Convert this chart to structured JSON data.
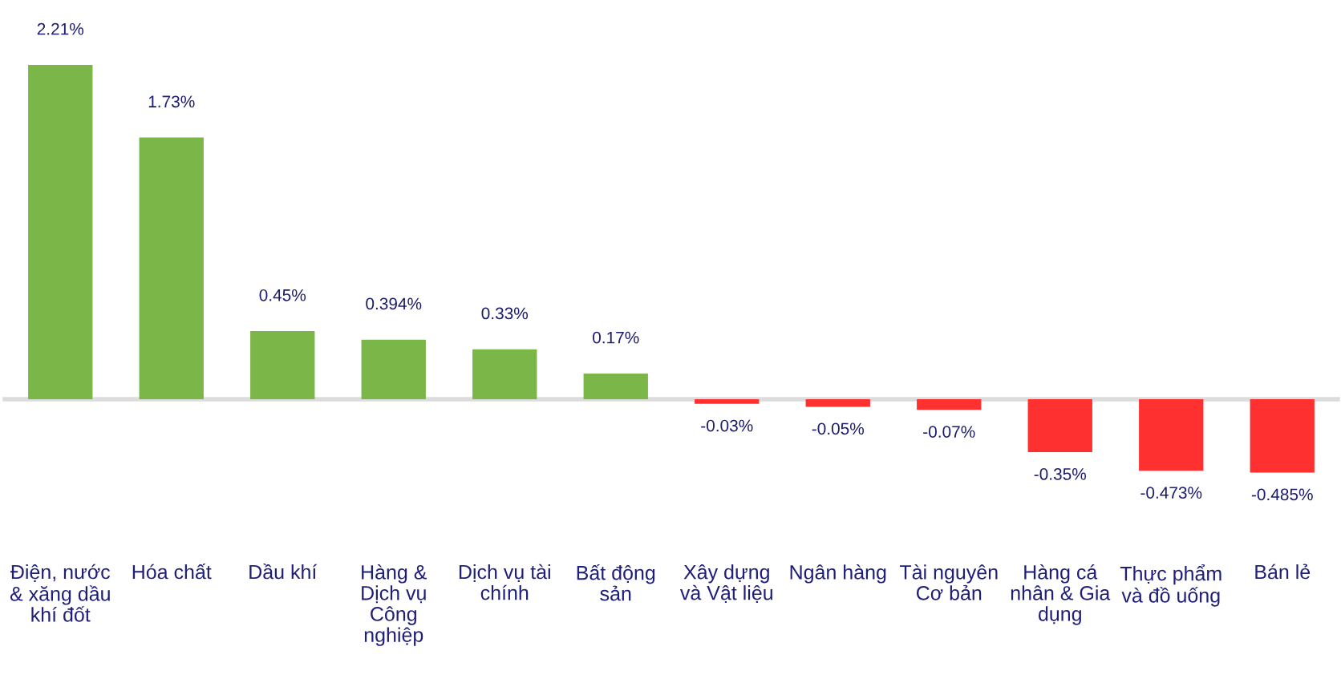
{
  "chart_data": {
    "type": "bar",
    "categories": [
      "Điện, nước & xăng dầu khí đốt",
      "Hóa chất",
      "Dầu khí",
      "Hàng & Dịch vụ Công nghiệp",
      "Dịch vụ tài chính",
      "Bất động sản",
      "Xây dựng và Vật liệu",
      "Ngân hàng",
      "Tài nguyên Cơ bản",
      "Hàng cá nhân & Gia dụng",
      "Thực phẩm và đồ uống",
      "Bán lẻ"
    ],
    "values": [
      2.21,
      1.73,
      0.45,
      0.394,
      0.33,
      0.17,
      -0.03,
      -0.05,
      -0.07,
      -0.35,
      -0.473,
      -0.485
    ],
    "value_labels": [
      "2.21%",
      "1.73%",
      "0.45%",
      "0.394%",
      "0.33%",
      "0.17%",
      "-0.03%",
      "-0.05%",
      "-0.07%",
      "-0.35%",
      "-0.473%",
      "-0.485%"
    ],
    "colors": [
      "#7ab648",
      "#7ab648",
      "#7ab648",
      "#7ab648",
      "#7ab648",
      "#7ab648",
      "#ff3030",
      "#ff3030",
      "#ff3030",
      "#ff3030",
      "#ff3030",
      "#ff3030"
    ]
  }
}
